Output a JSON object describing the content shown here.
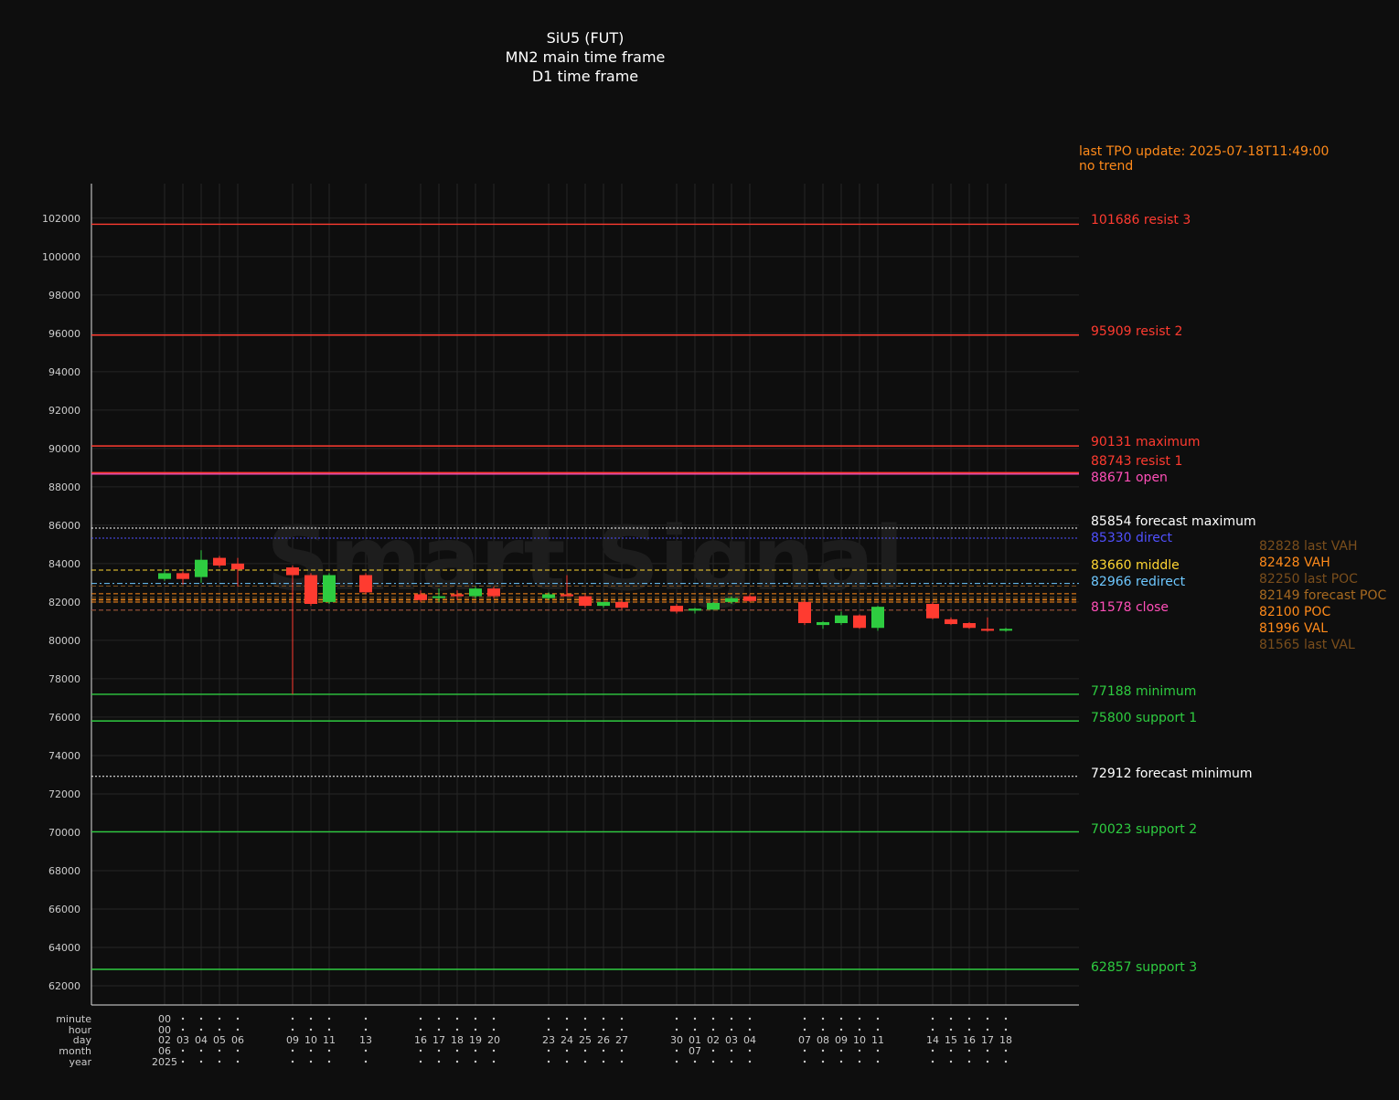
{
  "title_lines": [
    "SiU5 (FUT)",
    "MN2 main time frame",
    "D1 time frame"
  ],
  "tpo_update": "last TPO update: 2025-07-18T11:49:00",
  "trend": "no trend",
  "watermark": "Smart Signal",
  "colors": {
    "background": "#0e0e0e",
    "up": "#2ecc40",
    "down": "#ff3b30",
    "resist": "#ff3b30",
    "support": "#2ecc40",
    "orange": "#ff8a1a",
    "text": "#ffffff",
    "axis_text": "#cccccc"
  },
  "time_axis": {
    "row_labels": [
      "minute",
      "hour",
      "day",
      "month",
      "year"
    ],
    "first_marker": {
      "minute": "00",
      "hour": "00",
      "month": "06",
      "year": "2025"
    },
    "month_marker": {
      "label": "07",
      "day": "01"
    }
  },
  "chart_data": {
    "type": "candlestick",
    "ylim": [
      61000,
      103800
    ],
    "yticks": [
      62000,
      64000,
      66000,
      68000,
      70000,
      72000,
      74000,
      76000,
      78000,
      80000,
      82000,
      84000,
      86000,
      88000,
      90000,
      92000,
      94000,
      96000,
      98000,
      100000,
      102000
    ],
    "grid": true,
    "candles": [
      {
        "day": "02",
        "open": 83200,
        "high": 83700,
        "low": 83100,
        "close": 83500
      },
      {
        "day": "03",
        "open": 83500,
        "high": 83600,
        "low": 82900,
        "close": 83200
      },
      {
        "day": "04",
        "open": 83300,
        "high": 84700,
        "low": 83000,
        "close": 84200
      },
      {
        "day": "05",
        "open": 84300,
        "high": 84400,
        "low": 83800,
        "close": 83900
      },
      {
        "day": "06",
        "open": 84000,
        "high": 84300,
        "low": 82800,
        "close": 83700
      },
      {
        "day": "09",
        "open": 83800,
        "high": 83900,
        "low": 77188,
        "close": 83400
      },
      {
        "day": "10",
        "open": 83400,
        "high": 83500,
        "low": 81800,
        "close": 81900
      },
      {
        "day": "11",
        "open": 82000,
        "high": 83500,
        "low": 81900,
        "close": 83400
      },
      {
        "day": "13",
        "open": 83400,
        "high": 83500,
        "low": 82400,
        "close": 82500
      },
      {
        "day": "16",
        "open": 82400,
        "high": 82600,
        "low": 82000,
        "close": 82100
      },
      {
        "day": "17",
        "open": 82300,
        "high": 82700,
        "low": 82000,
        "close": 82300
      },
      {
        "day": "18",
        "open": 82400,
        "high": 82600,
        "low": 82100,
        "close": 82300
      },
      {
        "day": "19",
        "open": 82300,
        "high": 82800,
        "low": 82200,
        "close": 82700
      },
      {
        "day": "20",
        "open": 82700,
        "high": 82800,
        "low": 82200,
        "close": 82300
      },
      {
        "day": "23",
        "open": 82200,
        "high": 82500,
        "low": 82100,
        "close": 82400
      },
      {
        "day": "24",
        "open": 82400,
        "high": 83400,
        "low": 82300,
        "close": 82300
      },
      {
        "day": "25",
        "open": 82300,
        "high": 82400,
        "low": 81700,
        "close": 81800
      },
      {
        "day": "26",
        "open": 81800,
        "high": 82000,
        "low": 81700,
        "close": 82000
      },
      {
        "day": "27",
        "open": 82000,
        "high": 82100,
        "low": 81600,
        "close": 81700
      },
      {
        "day": "30",
        "open": 81800,
        "high": 81900,
        "low": 81400,
        "close": 81500
      },
      {
        "day": "01",
        "open": 81550,
        "high": 81700,
        "low": 81400,
        "close": 81650
      },
      {
        "day": "02",
        "open": 81600,
        "high": 82000,
        "low": 81600,
        "close": 81950
      },
      {
        "day": "03",
        "open": 82000,
        "high": 82300,
        "low": 81900,
        "close": 82200
      },
      {
        "day": "04",
        "open": 82300,
        "high": 82400,
        "low": 82000,
        "close": 82050
      },
      {
        "day": "07",
        "open": 82000,
        "high": 82100,
        "low": 80800,
        "close": 80900
      },
      {
        "day": "08",
        "open": 80800,
        "high": 81000,
        "low": 80600,
        "close": 80950
      },
      {
        "day": "09",
        "open": 80900,
        "high": 81500,
        "low": 80800,
        "close": 81300
      },
      {
        "day": "10",
        "open": 81300,
        "high": 81350,
        "low": 80600,
        "close": 80650
      },
      {
        "day": "11",
        "open": 80650,
        "high": 81800,
        "low": 80500,
        "close": 81750
      },
      {
        "day": "14",
        "open": 81900,
        "high": 82000,
        "low": 81100,
        "close": 81150
      },
      {
        "day": "15",
        "open": 81100,
        "high": 81200,
        "low": 80800,
        "close": 80850
      },
      {
        "day": "16",
        "open": 80900,
        "high": 80950,
        "low": 80600,
        "close": 80650
      },
      {
        "day": "17",
        "open": 80600,
        "high": 81200,
        "low": 80450,
        "close": 80500
      },
      {
        "day": "18",
        "open": 80550,
        "high": 80650,
        "low": 80450,
        "close": 80600
      }
    ],
    "levels": [
      {
        "value": 101686,
        "text": "101686 resist 3",
        "color": "#ff3b30",
        "style": "solid"
      },
      {
        "value": 95909,
        "text": "95909 resist 2",
        "color": "#ff3b30",
        "style": "solid"
      },
      {
        "value": 90131,
        "text": "90131 maximum",
        "color": "#ff3b30",
        "style": "solid"
      },
      {
        "value": 88743,
        "text": "88743 resist 1",
        "color": "#ff3b30",
        "style": "solid"
      },
      {
        "value": 88671,
        "text": "88671 open",
        "color": "#ff4fb8",
        "style": "solid"
      },
      {
        "value": 85854,
        "text": "85854 forecast maximum",
        "color": "#ffffff",
        "style": "dotted"
      },
      {
        "value": 85330,
        "text": "85330 direct",
        "color": "#5050ff",
        "style": "dotted"
      },
      {
        "value": 83660,
        "text": "83660 middle",
        "color": "#ffd633",
        "style": "dashed"
      },
      {
        "value": 82966,
        "text": "82966 redirect",
        "color": "#6ec8ff",
        "style": "dashdot"
      },
      {
        "value": 81578,
        "text": "81578 close",
        "color": "#ff4fb8",
        "style": "dashed"
      },
      {
        "value": 77188,
        "text": "77188 minimum",
        "color": "#2ecc40",
        "style": "solid"
      },
      {
        "value": 75800,
        "text": "75800 support 1",
        "color": "#2ecc40",
        "style": "solid"
      },
      {
        "value": 72912,
        "text": "72912 forecast minimum",
        "color": "#ffffff",
        "style": "dotted"
      },
      {
        "value": 70023,
        "text": "70023 support 2",
        "color": "#2ecc40",
        "style": "solid"
      },
      {
        "value": 62857,
        "text": "62857 support 3",
        "color": "#2ecc40",
        "style": "solid"
      }
    ],
    "profile_levels": [
      {
        "value": 82828,
        "text": "82828 last VAH",
        "color": "#7a4e1c"
      },
      {
        "value": 82428,
        "text": "82428 VAH",
        "color": "#ff8a1a"
      },
      {
        "value": 82250,
        "text": "82250 last POC",
        "color": "#7a4e1c"
      },
      {
        "value": 82149,
        "text": "82149 forecast POC",
        "color": "#a86a20"
      },
      {
        "value": 82100,
        "text": "82100 POC",
        "color": "#ff8a1a"
      },
      {
        "value": 81996,
        "text": "81996 VAL",
        "color": "#ff8a1a"
      },
      {
        "value": 81565,
        "text": "81565 last VAL",
        "color": "#7a4e1c"
      }
    ]
  }
}
